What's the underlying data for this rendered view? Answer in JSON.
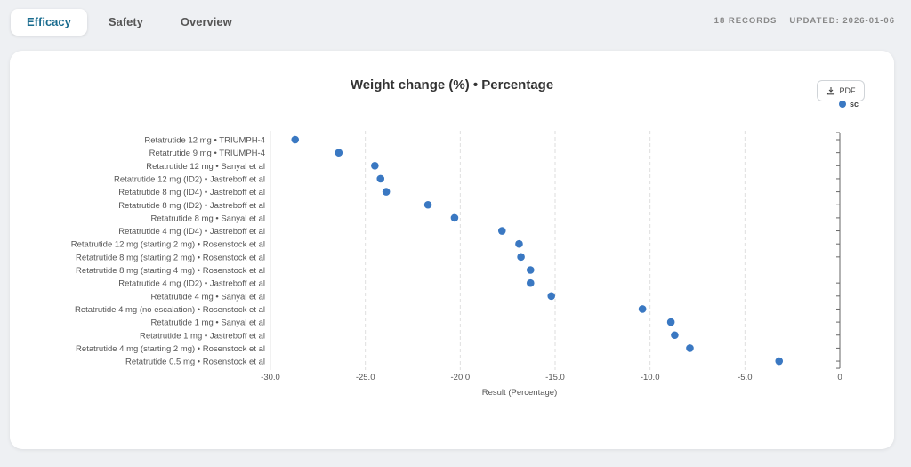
{
  "tabs": [
    {
      "label": "Efficacy"
    },
    {
      "label": "Safety"
    },
    {
      "label": "Overview"
    }
  ],
  "meta": {
    "records": "18 RECORDS",
    "updated": "UPDATED: 2026-01-06"
  },
  "toolbar": {
    "pdf_label": "PDF"
  },
  "colors": {
    "accent": "#1a6c8f",
    "series": "#3a78c2"
  },
  "chart_data": {
    "type": "scatter",
    "title": "Weight change (%) • Percentage",
    "xlabel": "Result (Percentage)",
    "ylabel": "",
    "xlim": [
      -30,
      0
    ],
    "x_ticks": [
      "-30.0",
      "-25.0",
      "-20.0",
      "-15.0",
      "-10.0",
      "-5.0",
      "0"
    ],
    "grid": "vertical dashed",
    "legend": "top-right",
    "series": [
      {
        "name": "sc",
        "color": "#3a78c2",
        "points": [
          {
            "label": "Retatrutide 12 mg • TRIUMPH-4",
            "x": -28.7
          },
          {
            "label": "Retatrutide 9 mg • TRIUMPH-4",
            "x": -26.4
          },
          {
            "label": "Retatrutide 12 mg • Sanyal et al",
            "x": -24.5
          },
          {
            "label": "Retatrutide 12 mg (ID2) • Jastreboff et al",
            "x": -24.2
          },
          {
            "label": "Retatrutide 8 mg (ID4) • Jastreboff et al",
            "x": -23.9
          },
          {
            "label": "Retatrutide 8 mg (ID2) • Jastreboff et al",
            "x": -21.7
          },
          {
            "label": "Retatrutide 8 mg • Sanyal et al",
            "x": -20.3
          },
          {
            "label": "Retatrutide 4 mg (ID4) • Jastreboff et al",
            "x": -17.8
          },
          {
            "label": "Retatrutide 12 mg (starting 2 mg) • Rosenstock et al",
            "x": -16.9
          },
          {
            "label": "Retatrutide 8 mg (starting 2 mg) • Rosenstock et al",
            "x": -16.8
          },
          {
            "label": "Retatrutide 8 mg (starting 4 mg) • Rosenstock et al",
            "x": -16.3
          },
          {
            "label": "Retatrutide 4 mg (ID2) • Jastreboff et al",
            "x": -16.3
          },
          {
            "label": "Retatrutide 4 mg • Sanyal et al",
            "x": -15.2
          },
          {
            "label": "Retatrutide 4 mg (no escalation) • Rosenstock et al",
            "x": -10.4
          },
          {
            "label": "Retatrutide 1 mg • Sanyal et al",
            "x": -8.9
          },
          {
            "label": "Retatrutide 1 mg • Jastreboff et al",
            "x": -8.7
          },
          {
            "label": "Retatrutide 4 mg (starting 2 mg) • Rosenstock et al",
            "x": -7.9
          },
          {
            "label": "Retatrutide 0.5 mg • Rosenstock et al",
            "x": -3.2
          }
        ]
      }
    ]
  }
}
